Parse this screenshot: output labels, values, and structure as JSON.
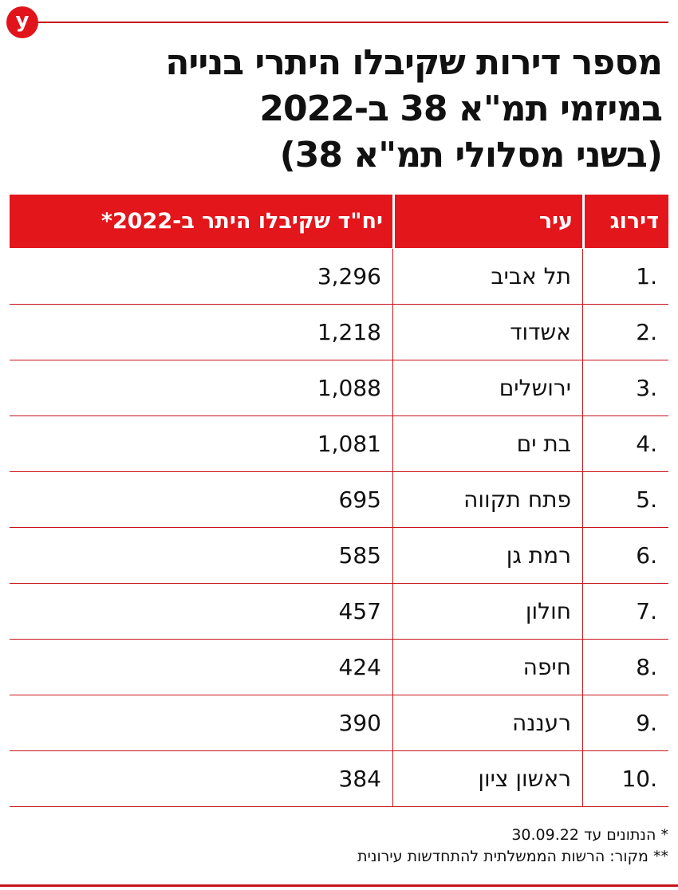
{
  "logo": "y",
  "title": {
    "line1": "מספר דירות שקיבלו היתרי בנייה",
    "line2": "במיזמי תמ\"א 38 ב-2022",
    "line3": "(בשני מסלולי תמ\"א 38)"
  },
  "colors": {
    "accent": "#e3161c",
    "rule": "#c8141b",
    "text": "#111111"
  },
  "chart_data": {
    "type": "table",
    "columns": [
      "דירוג",
      "עיר",
      "יח\"ד שקיבלו היתר ב-2022*"
    ],
    "rows": [
      {
        "rank": "1.",
        "city": "תל אביב",
        "units": "3,296"
      },
      {
        "rank": "2.",
        "city": "אשדוד",
        "units": "1,218"
      },
      {
        "rank": "3.",
        "city": "ירושלים",
        "units": "1,088"
      },
      {
        "rank": "4.",
        "city": "בת ים",
        "units": "1,081"
      },
      {
        "rank": "5.",
        "city": "פתח תקווה",
        "units": "695"
      },
      {
        "rank": "6.",
        "city": "רמת גן",
        "units": "585"
      },
      {
        "rank": "7.",
        "city": "חולון",
        "units": "457"
      },
      {
        "rank": "8.",
        "city": "חיפה",
        "units": "424"
      },
      {
        "rank": "9.",
        "city": "רעננה",
        "units": "390"
      },
      {
        "rank": "10.",
        "city": "ראשון ציון",
        "units": "384"
      }
    ]
  },
  "footnotes": {
    "note1": "* הנתונים עד 30.09.22",
    "note2": "** מקור: הרשות הממשלתית להתחדשות עירונית"
  }
}
